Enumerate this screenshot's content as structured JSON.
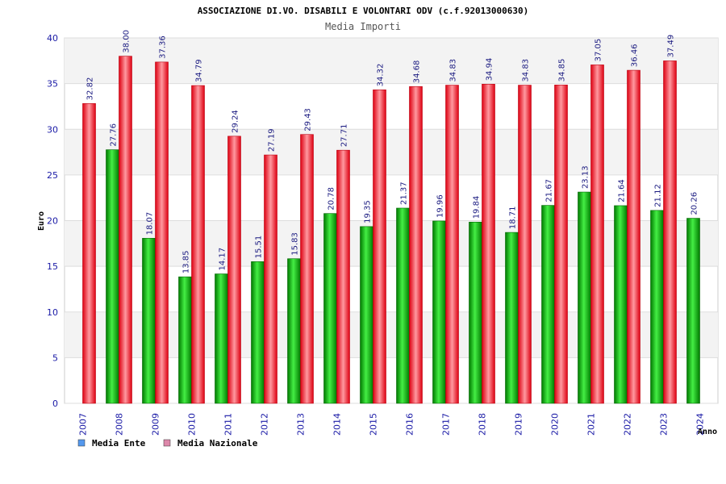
{
  "chart_data": {
    "type": "bar",
    "title": "ASSOCIAZIONE DI.VO. DISABILI E VOLONTARI ODV (c.f.92013000630)",
    "subtitle": "Media Importi",
    "xlabel": "Anno",
    "ylabel": "Euro",
    "ylim": [
      0,
      40
    ],
    "yticks": [
      "0",
      "5",
      "10",
      "15",
      "20",
      "25",
      "30",
      "35",
      "40"
    ],
    "grid": true,
    "legend_position": "bottom-left",
    "categories": [
      "2007",
      "2008",
      "2009",
      "2010",
      "2011",
      "2012",
      "2013",
      "2014",
      "2015",
      "2016",
      "2017",
      "2018",
      "2019",
      "2020",
      "2021",
      "2022",
      "2023",
      "2024"
    ],
    "series": [
      {
        "name": "Media Ente",
        "color": "#11aa11",
        "legend_color": "#5599ee",
        "values": [
          null,
          27.76,
          18.07,
          13.85,
          14.17,
          15.51,
          15.83,
          20.78,
          19.35,
          21.37,
          19.96,
          19.84,
          18.71,
          21.67,
          23.13,
          21.64,
          21.12,
          20.26
        ],
        "labels": [
          "",
          "27.76",
          "18.07",
          "13.85",
          "14.17",
          "15.51",
          "15.83",
          "20.78",
          "19.35",
          "21.37",
          "19.96",
          "19.84",
          "18.71",
          "21.67",
          "23.13",
          "21.64",
          "21.12",
          "20.26"
        ]
      },
      {
        "name": "Media Nazionale",
        "color": "#ee2233",
        "legend_color": "#dd88aa",
        "values": [
          32.82,
          38.0,
          37.36,
          34.79,
          29.24,
          27.19,
          29.43,
          27.71,
          34.32,
          34.68,
          34.83,
          34.94,
          34.83,
          34.85,
          37.05,
          36.46,
          37.49,
          null
        ],
        "labels": [
          "32.82",
          "38.00",
          "37.36",
          "34.79",
          "29.24",
          "27.19",
          "29.43",
          "27.71",
          "34.32",
          "34.68",
          "34.83",
          "34.94",
          "34.83",
          "34.85",
          "37.05",
          "36.46",
          "37.49",
          ""
        ]
      }
    ]
  }
}
